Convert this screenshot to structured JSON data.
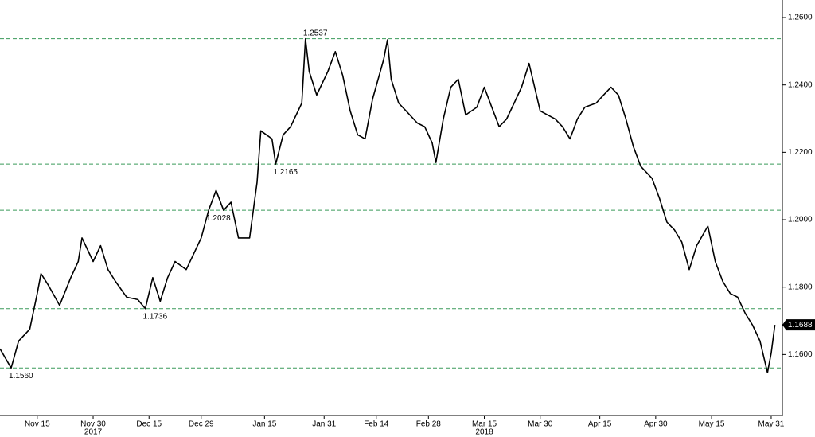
{
  "chart_data": {
    "type": "line",
    "color": "#000000",
    "level_color": "#3a9a5a",
    "xlim": [
      "2017-11-05",
      "2018-06-03"
    ],
    "ylim": [
      1.1419,
      1.2652
    ],
    "yticks": [
      {
        "value": 1.16,
        "label": "1.1600"
      },
      {
        "value": 1.18,
        "label": "1.1800"
      },
      {
        "value": 1.2,
        "label": "1.2000"
      },
      {
        "value": 1.22,
        "label": "1.2200"
      },
      {
        "value": 1.24,
        "label": "1.2400"
      },
      {
        "value": 1.26,
        "label": "1.2600"
      }
    ],
    "xticks": [
      {
        "value": "2017-11-15",
        "label": "Nov 15"
      },
      {
        "value": "2017-11-30",
        "label": "Nov 30"
      },
      {
        "value": "2017-12-15",
        "label": "Dec 15"
      },
      {
        "value": "2017-12-29",
        "label": "Dec 29"
      },
      {
        "value": "2018-01-15",
        "label": "Jan 15"
      },
      {
        "value": "2018-01-31",
        "label": "Jan 31"
      },
      {
        "value": "2018-02-14",
        "label": "Feb 14"
      },
      {
        "value": "2018-02-28",
        "label": "Feb 28"
      },
      {
        "value": "2018-03-15",
        "label": "Mar 15"
      },
      {
        "value": "2018-03-30",
        "label": "Mar 30"
      },
      {
        "value": "2018-04-15",
        "label": "Apr 15"
      },
      {
        "value": "2018-04-30",
        "label": "Apr 30"
      },
      {
        "value": "2018-05-15",
        "label": "May 15"
      },
      {
        "value": "2018-05-31",
        "label": "May 31"
      }
    ],
    "year_labels": [
      {
        "value": "2017-11-30",
        "label": "2017"
      },
      {
        "value": "2018-03-15",
        "label": "2018"
      }
    ],
    "levels": [
      1.2537,
      1.2165,
      1.2028,
      1.1736,
      {
        "value": 1.156,
        "label": "1.1560"
      }
    ],
    "x": [
      "2017-11-05",
      "2017-11-08",
      "2017-11-10",
      "2017-11-13",
      "2017-11-15",
      "2017-11-16",
      "2017-11-18",
      "2017-11-21",
      "2017-11-24",
      "2017-11-26",
      "2017-11-27",
      "2017-11-30",
      "2017-12-02",
      "2017-12-04",
      "2017-12-06",
      "2017-12-09",
      "2017-12-12",
      "2017-12-14",
      "2017-12-16",
      "2017-12-18",
      "2017-12-20",
      "2017-12-22",
      "2017-12-25",
      "2017-12-27",
      "2017-12-29",
      "2017-12-31",
      "2018-01-02",
      "2018-01-04",
      "2018-01-06",
      "2018-01-08",
      "2018-01-11",
      "2018-01-13",
      "2018-01-14",
      "2018-01-17",
      "2018-01-18",
      "2018-01-20",
      "2018-01-22",
      "2018-01-25",
      "2018-01-26",
      "2018-01-27",
      "2018-01-29",
      "2018-02-01",
      "2018-02-03",
      "2018-02-05",
      "2018-02-07",
      "2018-02-09",
      "2018-02-11",
      "2018-02-13",
      "2018-02-16",
      "2018-02-17",
      "2018-02-18",
      "2018-02-20",
      "2018-02-22",
      "2018-02-25",
      "2018-02-27",
      "2018-03-01",
      "2018-03-02",
      "2018-03-04",
      "2018-03-06",
      "2018-03-08",
      "2018-03-10",
      "2018-03-13",
      "2018-03-15",
      "2018-03-17",
      "2018-03-19",
      "2018-03-21",
      "2018-03-23",
      "2018-03-25",
      "2018-03-27",
      "2018-03-30",
      "2018-04-01",
      "2018-04-03",
      "2018-04-05",
      "2018-04-07",
      "2018-04-09",
      "2018-04-11",
      "2018-04-14",
      "2018-04-16",
      "2018-04-18",
      "2018-04-20",
      "2018-04-22",
      "2018-04-24",
      "2018-04-26",
      "2018-04-29",
      "2018-05-01",
      "2018-05-03",
      "2018-05-05",
      "2018-05-07",
      "2018-05-09",
      "2018-05-11",
      "2018-05-14",
      "2018-05-16",
      "2018-05-18",
      "2018-05-20",
      "2018-05-22",
      "2018-05-24",
      "2018-05-26",
      "2018-05-28",
      "2018-05-30",
      "2018-05-31",
      "2018-06-01"
    ],
    "values": [
      1.1617,
      1.156,
      1.164,
      1.1675,
      1.1781,
      1.184,
      1.1805,
      1.1746,
      1.1828,
      1.1876,
      1.1946,
      1.1876,
      1.1923,
      1.1852,
      1.1817,
      1.177,
      1.1763,
      1.1736,
      1.1828,
      1.1758,
      1.1828,
      1.1876,
      1.1852,
      1.1899,
      1.1946,
      1.2028,
      1.2087,
      1.2028,
      1.2052,
      1.1946,
      1.1946,
      1.2111,
      1.2264,
      1.224,
      1.2165,
      1.2252,
      1.2276,
      1.2346,
      1.2537,
      1.244,
      1.237,
      1.244,
      1.2499,
      1.2428,
      1.2323,
      1.2252,
      1.224,
      1.2358,
      1.2476,
      1.2534,
      1.2417,
      1.2346,
      1.2323,
      1.2287,
      1.2276,
      1.2228,
      1.217,
      1.2299,
      1.2393,
      1.2417,
      1.2311,
      1.2334,
      1.2393,
      1.2334,
      1.2276,
      1.2299,
      1.2346,
      1.2393,
      1.2464,
      1.2323,
      1.2311,
      1.2299,
      1.2276,
      1.224,
      1.2299,
      1.2334,
      1.2346,
      1.237,
      1.2393,
      1.237,
      1.2299,
      1.2217,
      1.2158,
      1.2123,
      1.2064,
      1.1993,
      1.197,
      1.1934,
      1.1852,
      1.1923,
      1.1981,
      1.1876,
      1.1817,
      1.1781,
      1.177,
      1.1723,
      1.1687,
      1.164,
      1.1546,
      1.1605,
      1.1688
    ]
  }
}
